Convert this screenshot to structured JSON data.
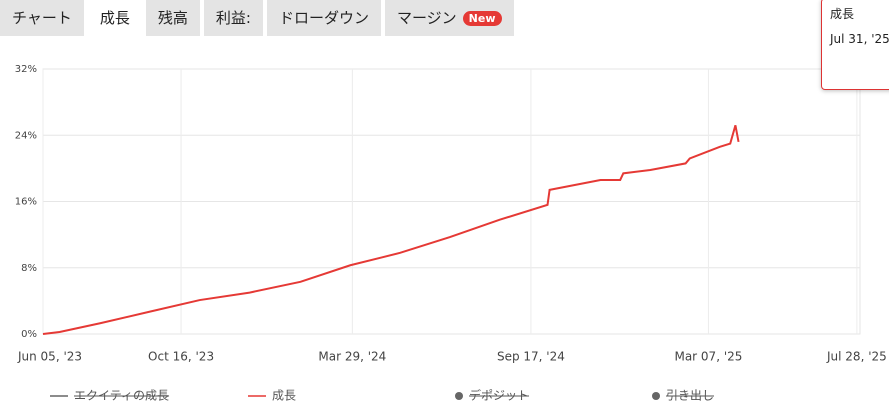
{
  "tabs": [
    "チャート",
    "成長",
    "残高",
    "利益:",
    "ドローダウン",
    "マージン"
  ],
  "active_tab": 1,
  "badge": "New",
  "chart_data": {
    "type": "line",
    "series": [
      {
        "name": "成長",
        "color": "#e53935",
        "x": [
          "2023-06-05",
          "2023-06-21",
          "2023-07-30",
          "2023-09-16",
          "2023-11-03",
          "2023-12-21",
          "2024-02-08",
          "2024-03-27",
          "2024-05-14",
          "2024-07-01",
          "2024-08-18",
          "2024-10-03",
          "2024-10-05",
          "2024-11-23",
          "2024-12-12",
          "2024-12-15",
          "2025-01-10",
          "2025-02-13",
          "2025-02-17",
          "2025-03-18",
          "2025-03-28",
          "2025-04-02",
          "2025-04-05"
        ],
        "values": [
          0,
          0.24,
          1.3,
          2.7,
          4.1,
          5.0,
          6.3,
          8.3,
          9.8,
          11.7,
          13.8,
          15.6,
          17.4,
          18.6,
          18.6,
          19.4,
          19.8,
          20.6,
          21.2,
          22.6,
          23.0,
          25.2,
          23.2
        ],
        "value_labels": [
          null,
          null,
          null,
          null,
          null,
          null,
          null,
          null,
          null,
          null,
          null,
          null,
          null,
          null,
          null,
          null,
          null,
          null,
          null,
          null,
          null,
          null,
          null
        ]
      }
    ],
    "legend": [
      {
        "name": "エクイティの成長",
        "color": "#666666",
        "marker": "line",
        "hidden": true
      },
      {
        "name": "成長",
        "color": "#e53935",
        "marker": "line",
        "hidden": false
      },
      {
        "name": "デポジット",
        "color": "#666666",
        "marker": "dot",
        "hidden": true
      },
      {
        "name": "引き出し",
        "color": "#666666",
        "marker": "dot",
        "hidden": true
      }
    ],
    "tooltip": {
      "date_label": "Jul 31, '25"
    },
    "xlim": [
      "2023-06-05",
      "2025-07-31"
    ],
    "xticks": [
      {
        "value": "2023-06-05",
        "label": "Jun 05, '23"
      },
      {
        "value": "2023-10-16",
        "label": "Oct 16, '23"
      },
      {
        "value": "2024-03-29",
        "label": "Mar 29, '24"
      },
      {
        "value": "2024-09-17",
        "label": "Sep 17, '24"
      },
      {
        "value": "2025-03-07",
        "label": "Mar 07, '25"
      },
      {
        "value": "2025-07-28",
        "label": "Jul 28, '25"
      }
    ],
    "ylim": [
      0,
      32
    ],
    "yticks": [
      {
        "value": 0,
        "label": "0%"
      },
      {
        "value": 8,
        "label": "8%"
      },
      {
        "value": 16,
        "label": "16%"
      },
      {
        "value": 24,
        "label": "24%"
      },
      {
        "value": 32,
        "label": "32%"
      }
    ],
    "grid": true
  }
}
